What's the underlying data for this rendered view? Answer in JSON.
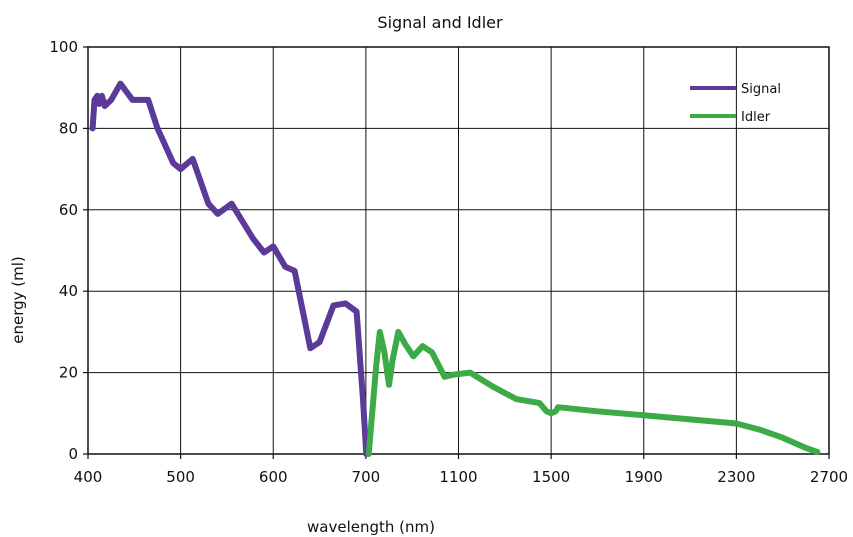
{
  "chart_data": {
    "type": "line",
    "title": "Signal and Idler",
    "xlabel": "wavelength (nm)",
    "ylabel": "energy (ml)",
    "ylim": [
      0,
      100
    ],
    "yticks": [
      0,
      20,
      40,
      60,
      80,
      100
    ],
    "xticks": [
      400,
      500,
      600,
      700,
      1100,
      1500,
      1900,
      2300,
      2700
    ],
    "xtick_labels": [
      "400",
      "500",
      "600",
      "700",
      "1100",
      "1500",
      "1900",
      "2300",
      "2700"
    ],
    "x_scale": "piecewise: 100 nm per division from 400 to 700, 400 nm per division from 700 to 2700",
    "grid": true,
    "legend_position": "top-right",
    "series": [
      {
        "name": "Signal",
        "color": "#5b3a9a",
        "points": [
          [
            405,
            80
          ],
          [
            407,
            87
          ],
          [
            410,
            88
          ],
          [
            412,
            86
          ],
          [
            415,
            88
          ],
          [
            418,
            85.5
          ],
          [
            425,
            87
          ],
          [
            435,
            91
          ],
          [
            448,
            87
          ],
          [
            465,
            87
          ],
          [
            475,
            80
          ],
          [
            492,
            71.5
          ],
          [
            500,
            70
          ],
          [
            513,
            72.5
          ],
          [
            530,
            61.5
          ],
          [
            540,
            59
          ],
          [
            555,
            61.5
          ],
          [
            578,
            53
          ],
          [
            590,
            49.5
          ],
          [
            600,
            51
          ],
          [
            613,
            46
          ],
          [
            623,
            45
          ],
          [
            640,
            26
          ],
          [
            650,
            27.5
          ],
          [
            665,
            36.5
          ],
          [
            678,
            37
          ],
          [
            690,
            35
          ],
          [
            697,
            13
          ],
          [
            702,
            0
          ]
        ]
      },
      {
        "name": "Idler",
        "color": "#3daa48",
        "points": [
          [
            712,
            0
          ],
          [
            745,
            22
          ],
          [
            760,
            30
          ],
          [
            780,
            25
          ],
          [
            800,
            17
          ],
          [
            815,
            23
          ],
          [
            840,
            30
          ],
          [
            870,
            27
          ],
          [
            905,
            24
          ],
          [
            945,
            26.5
          ],
          [
            985,
            25
          ],
          [
            1040,
            19
          ],
          [
            1080,
            19.5
          ],
          [
            1150,
            20
          ],
          [
            1250,
            16.5
          ],
          [
            1350,
            13.5
          ],
          [
            1450,
            12.5
          ],
          [
            1480,
            10.5
          ],
          [
            1500,
            10
          ],
          [
            1520,
            10.5
          ],
          [
            1530,
            11.5
          ],
          [
            1700,
            10.5
          ],
          [
            1900,
            9.5
          ],
          [
            2100,
            8.5
          ],
          [
            2300,
            7.5
          ],
          [
            2400,
            6
          ],
          [
            2500,
            4
          ],
          [
            2600,
            1.5
          ],
          [
            2650,
            0.5
          ]
        ]
      }
    ]
  }
}
